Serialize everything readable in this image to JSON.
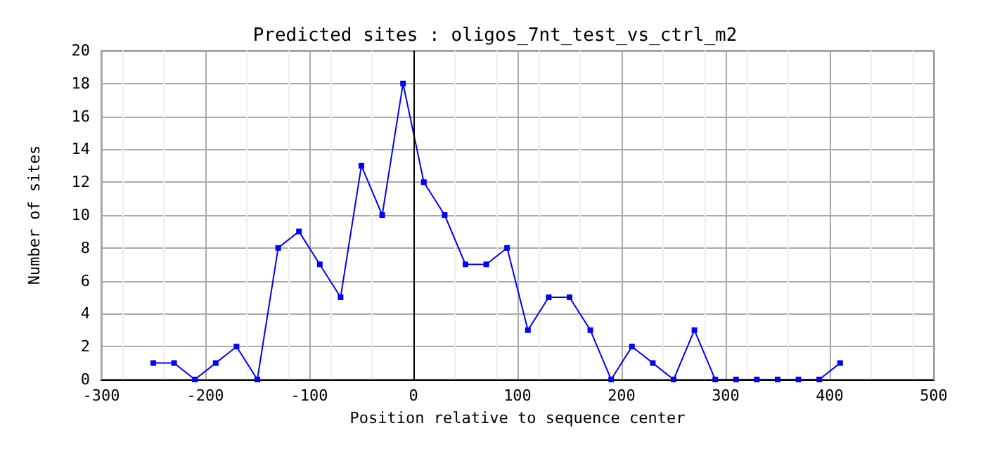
{
  "chart_data": {
    "type": "line",
    "title": "Predicted sites : oligos_7nt_test_vs_ctrl_m2",
    "xlabel": "Position relative to sequence center",
    "ylabel": "Number of sites",
    "x": [
      -250,
      -230,
      -210,
      -190,
      -170,
      -150,
      -130,
      -110,
      -90,
      -70,
      -50,
      -30,
      -10,
      10,
      30,
      50,
      70,
      90,
      110,
      130,
      150,
      170,
      190,
      210,
      230,
      250,
      270,
      290,
      310,
      330,
      350,
      370,
      390,
      410
    ],
    "series": [
      {
        "color": "#0000ff",
        "values": [
          1,
          1,
          0,
          1,
          2,
          0,
          8,
          9,
          7,
          5,
          13,
          10,
          18,
          12,
          10,
          7,
          7,
          8,
          3,
          5,
          5,
          3,
          0,
          2,
          1,
          0,
          3,
          0,
          0,
          0,
          0,
          0,
          0,
          1
        ]
      }
    ],
    "xlim": [
      -300,
      500
    ],
    "xticks": [
      -300,
      -200,
      -100,
      0,
      100,
      200,
      300,
      400,
      500
    ],
    "ylim": [
      0,
      20
    ],
    "yticks": [
      0,
      2,
      4,
      6,
      8,
      10,
      12,
      14,
      16,
      18,
      20
    ],
    "ref_lines": [
      {
        "axis": "x",
        "value": 0,
        "color": "#000000"
      }
    ],
    "grid": true,
    "marker": "square",
    "line_style": "solid"
  }
}
